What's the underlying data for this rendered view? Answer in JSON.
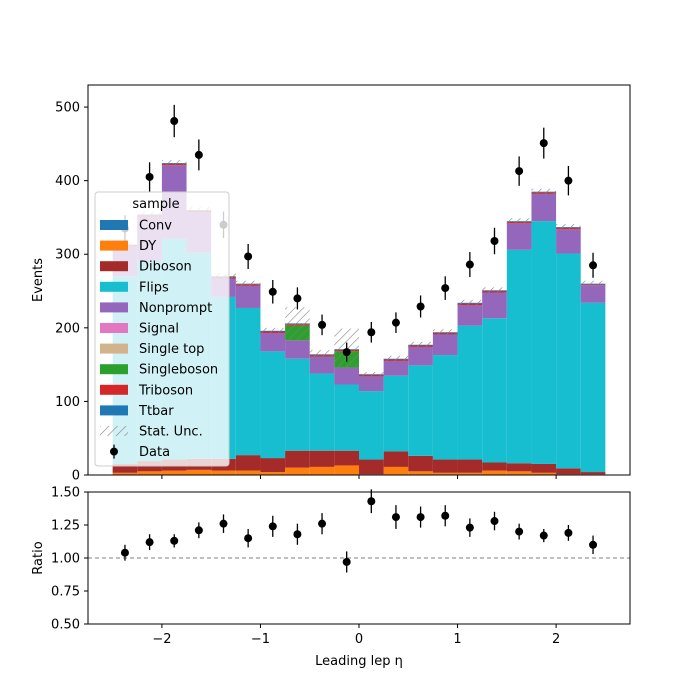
{
  "chart_data": [
    {
      "type": "bar",
      "panel": "main",
      "stacked": true,
      "ylabel": "Events",
      "xlim": [
        -2.75,
        2.75
      ],
      "ylim": [
        0,
        530
      ],
      "yticks": [
        0,
        100,
        200,
        300,
        400,
        500
      ],
      "x_bin_edges": [
        -2.5,
        -2.25,
        -2.0,
        -1.75,
        -1.5,
        -1.25,
        -1.0,
        -0.75,
        -0.5,
        -0.25,
        0.0,
        0.25,
        0.5,
        0.75,
        1.0,
        1.25,
        1.5,
        1.75,
        2.0,
        2.25,
        2.5
      ],
      "x": [
        -2.375,
        -2.125,
        -1.875,
        -1.625,
        -1.375,
        -1.125,
        -0.875,
        -0.625,
        -0.375,
        -0.125,
        0.125,
        0.375,
        0.625,
        0.875,
        1.125,
        1.375,
        1.625,
        1.875,
        2.125,
        2.375
      ],
      "legend_title": "sample",
      "legend_position": "center-left",
      "series": [
        {
          "name": "Conv",
          "color": "#1f77b4",
          "values": [
            0,
            0,
            0,
            0,
            0,
            0,
            0,
            0,
            0,
            0,
            0,
            0,
            0,
            0,
            0,
            0,
            0,
            0,
            0,
            0
          ]
        },
        {
          "name": "DY",
          "color": "#ff7f0e",
          "values": [
            3,
            5,
            6,
            7,
            6,
            6,
            4,
            10,
            11,
            13,
            1,
            11,
            5,
            3,
            3,
            6,
            5,
            3,
            1,
            1
          ]
        },
        {
          "name": "Diboson",
          "color": "#a52a2a",
          "values": [
            12,
            14,
            15,
            15,
            16,
            21,
            19,
            23,
            22,
            20,
            20,
            21,
            21,
            18,
            18,
            11,
            11,
            12,
            8,
            3
          ]
        },
        {
          "name": "Flips",
          "color": "#17becf",
          "values": [
            255,
            272,
            300,
            280,
            220,
            200,
            145,
            125,
            105,
            90,
            93,
            103,
            123,
            142,
            182,
            196,
            290,
            330,
            292,
            230
          ]
        },
        {
          "name": "Nonprompt",
          "color": "#9467bd",
          "values": [
            40,
            60,
            100,
            55,
            25,
            30,
            25,
            25,
            23,
            23,
            20,
            20,
            25,
            28,
            28,
            35,
            36,
            37,
            33,
            24
          ]
        },
        {
          "name": "Signal",
          "color": "#e377c2",
          "values": [
            0,
            0,
            0,
            0,
            0,
            0,
            0,
            0,
            0,
            0,
            0,
            0,
            0,
            0,
            0,
            0,
            0,
            0,
            0,
            0
          ]
        },
        {
          "name": "Single top",
          "color": "#d2b48c",
          "values": [
            0,
            0,
            0,
            0,
            0,
            0,
            0,
            0,
            0,
            0,
            0,
            0,
            0,
            0,
            0,
            0,
            0,
            0,
            0,
            0
          ]
        },
        {
          "name": "Singleboson",
          "color": "#2ca02c",
          "values": [
            0,
            0,
            0,
            0,
            0,
            0,
            0,
            20,
            0,
            22,
            0,
            0,
            0,
            0,
            0,
            0,
            0,
            0,
            0,
            0
          ]
        },
        {
          "name": "Triboson",
          "color": "#d62728",
          "values": [
            2,
            2,
            2,
            2,
            2,
            2,
            2,
            2,
            2,
            2,
            2,
            2,
            2,
            2,
            2,
            2,
            2,
            2,
            2,
            1
          ]
        },
        {
          "name": "Ttbar",
          "color": "#1f77b4",
          "values": [
            1,
            1,
            1,
            1,
            1,
            1,
            1,
            1,
            1,
            1,
            1,
            1,
            1,
            1,
            1,
            1,
            1,
            1,
            1,
            1
          ]
        }
      ],
      "stat_unc": {
        "name": "Stat. Unc.",
        "values": [
          4,
          4,
          4,
          4,
          4,
          4,
          4,
          22,
          6,
          28,
          3,
          4,
          4,
          4,
          4,
          4,
          4,
          4,
          4,
          4
        ]
      },
      "data": {
        "name": "Data",
        "color": "#000000",
        "values": [
          335,
          405,
          481,
          435,
          340,
          297,
          249,
          240,
          204,
          167,
          194,
          207,
          229,
          254,
          286,
          318,
          413,
          451,
          400,
          285
        ],
        "errors": [
          18,
          20,
          22,
          21,
          18,
          17,
          16,
          15,
          14,
          13,
          14,
          14,
          15,
          16,
          17,
          18,
          20,
          21,
          20,
          17
        ]
      }
    },
    {
      "type": "scatter",
      "panel": "ratio",
      "xlabel": "Leading lep η",
      "ylabel": "Ratio",
      "xlim": [
        -2.75,
        2.75
      ],
      "ylim": [
        0.5,
        1.5
      ],
      "yticks": [
        "0.50",
        "0.75",
        "1.00",
        "1.25",
        "1.50"
      ],
      "xticks": [
        "−2",
        "−1",
        "0",
        "1",
        "2"
      ],
      "reference_line": 1.0,
      "x": [
        -2.375,
        -2.125,
        -1.875,
        -1.625,
        -1.375,
        -1.125,
        -0.875,
        -0.625,
        -0.375,
        -0.125,
        0.125,
        0.375,
        0.625,
        0.875,
        1.125,
        1.375,
        1.625,
        1.875,
        2.125,
        2.375
      ],
      "values": [
        1.04,
        1.12,
        1.13,
        1.21,
        1.26,
        1.15,
        1.24,
        1.18,
        1.26,
        0.97,
        1.43,
        1.31,
        1.31,
        1.32,
        1.23,
        1.28,
        1.2,
        1.17,
        1.19,
        1.1
      ],
      "errors": [
        0.06,
        0.06,
        0.05,
        0.06,
        0.07,
        0.07,
        0.08,
        0.08,
        0.08,
        0.08,
        0.09,
        0.09,
        0.08,
        0.08,
        0.07,
        0.07,
        0.06,
        0.05,
        0.06,
        0.07
      ]
    }
  ]
}
